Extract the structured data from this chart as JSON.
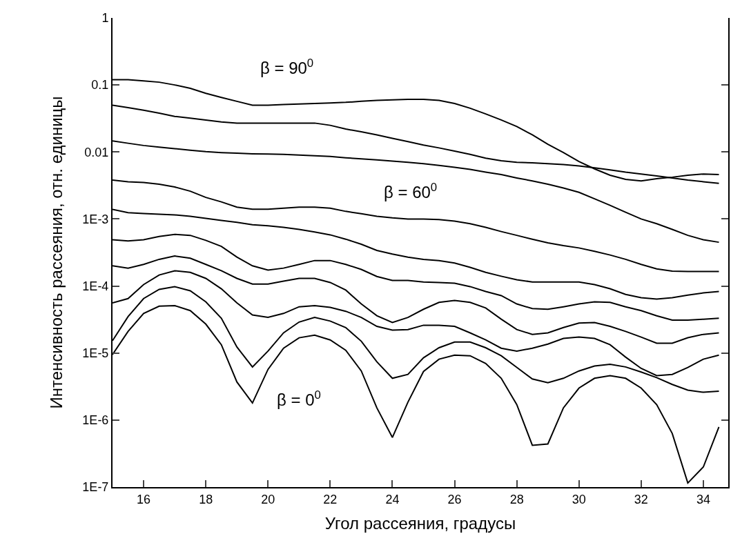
{
  "chart_data": {
    "type": "line",
    "xlabel": "Угол рассеяния, градусы",
    "ylabel": "Интенсивность рассеяния, отн. единицы",
    "x": [
      15,
      15.5,
      16,
      16.5,
      17,
      17.5,
      18,
      18.5,
      19,
      19.5,
      20,
      20.5,
      21,
      21.5,
      22,
      22.5,
      23,
      23.5,
      24,
      24.5,
      25,
      25.5,
      26,
      26.5,
      27,
      27.5,
      28,
      28.5,
      29,
      29.5,
      30,
      30.5,
      31,
      31.5,
      32,
      32.5,
      33,
      33.5,
      34,
      34.5
    ],
    "series": [
      {
        "color": "#000000",
        "values": [
          0.12,
          0.12,
          0.115,
          0.11,
          0.1,
          0.089,
          0.075,
          0.065,
          0.057,
          0.05,
          0.05,
          0.051,
          0.052,
          0.053,
          0.054,
          0.055,
          0.057,
          0.059,
          0.06,
          0.061,
          0.061,
          0.059,
          0.053,
          0.045,
          0.037,
          0.03,
          0.024,
          0.018,
          0.013,
          0.0098,
          0.0072,
          0.0056,
          0.0045,
          0.0039,
          0.0037,
          0.004,
          0.0042,
          0.0045,
          0.0047,
          0.0046
        ]
      },
      {
        "color": "#000000",
        "values": [
          0.05,
          0.046,
          0.042,
          0.038,
          0.034,
          0.032,
          0.03,
          0.028,
          0.027,
          0.027,
          0.027,
          0.027,
          0.027,
          0.027,
          0.025,
          0.022,
          0.02,
          0.018,
          0.016,
          0.0143,
          0.0127,
          0.0115,
          0.0103,
          0.0092,
          0.0081,
          0.0074,
          0.007,
          0.0069,
          0.0067,
          0.0065,
          0.0062,
          0.0058,
          0.0054,
          0.005,
          0.0047,
          0.0044,
          0.0041,
          0.0038,
          0.0036,
          0.0034
        ]
      },
      {
        "color": "#000000",
        "values": [
          0.0146,
          0.0135,
          0.0125,
          0.0118,
          0.0112,
          0.0106,
          0.0101,
          0.0098,
          0.0096,
          0.0094,
          0.0093,
          0.0092,
          0.009,
          0.0088,
          0.0086,
          0.0082,
          0.0079,
          0.0076,
          0.0073,
          0.007,
          0.0067,
          0.0063,
          0.0059,
          0.0055,
          0.005,
          0.0046,
          0.0041,
          0.0037,
          0.0033,
          0.0029,
          0.0025,
          0.002,
          0.0016,
          0.00126,
          0.001,
          0.00085,
          0.0007,
          0.00057,
          0.00049,
          0.00045
        ]
      },
      {
        "color": "#000000",
        "values": [
          0.0038,
          0.0036,
          0.0035,
          0.0033,
          0.003,
          0.0026,
          0.0021,
          0.0018,
          0.0015,
          0.0014,
          0.0014,
          0.00145,
          0.0015,
          0.0015,
          0.00145,
          0.0013,
          0.0012,
          0.0011,
          0.00104,
          0.001,
          0.001,
          0.00098,
          0.00093,
          0.00085,
          0.00075,
          0.00065,
          0.00057,
          0.0005,
          0.00044,
          0.0004,
          0.00037,
          0.00033,
          0.00029,
          0.00025,
          0.00021,
          0.00018,
          0.000167,
          0.000165,
          0.000165,
          0.000165
        ]
      },
      {
        "color": "#000000",
        "values": [
          0.00139,
          0.00124,
          0.00121,
          0.00118,
          0.00115,
          0.0011,
          0.00102,
          0.00095,
          0.00089,
          0.00082,
          0.00079,
          0.00075,
          0.0007,
          0.00064,
          0.00058,
          0.0005,
          0.00042,
          0.00034,
          0.0003,
          0.00027,
          0.00025,
          0.00024,
          0.00022,
          0.00019,
          0.00016,
          0.00014,
          0.000124,
          0.000115,
          0.000115,
          0.000115,
          0.000115,
          0.000105,
          9.1e-05,
          7.5e-05,
          6.7e-05,
          6.4e-05,
          6.7e-05,
          7.3e-05,
          7.9e-05,
          8.3e-05
        ]
      },
      {
        "color": "#000000",
        "values": [
          0.00049,
          0.00047,
          0.00049,
          0.00055,
          0.00059,
          0.00057,
          0.00048,
          0.00039,
          0.00027,
          0.0002,
          0.000173,
          0.000185,
          0.00021,
          0.00024,
          0.00024,
          0.00021,
          0.000177,
          0.000139,
          0.000121,
          0.000121,
          0.000115,
          0.000113,
          0.00011,
          9.8e-05,
          8.3e-05,
          7.2e-05,
          5.4e-05,
          4.6e-05,
          4.5e-05,
          4.9e-05,
          5.4e-05,
          5.8e-05,
          5.7e-05,
          4.9e-05,
          4.3e-05,
          3.6e-05,
          3.1e-05,
          3.1e-05,
          3.2e-05,
          3.3e-05
        ]
      },
      {
        "color": "#000000",
        "values": [
          0.0002,
          0.000185,
          0.00021,
          0.00025,
          0.00028,
          0.00026,
          0.00021,
          0.000169,
          0.00013,
          0.000107,
          0.000107,
          0.000118,
          0.00013,
          0.00013,
          0.000113,
          8.7e-05,
          5.4e-05,
          3.6e-05,
          2.85e-05,
          3.4e-05,
          4.5e-05,
          5.7e-05,
          6.1e-05,
          5.7e-05,
          4.7e-05,
          3.2e-05,
          2.24e-05,
          1.9e-05,
          2e-05,
          2.4e-05,
          2.8e-05,
          2.85e-05,
          2.5e-05,
          2.1e-05,
          1.73e-05,
          1.4e-05,
          1.4e-05,
          1.69e-05,
          1.9e-05,
          2e-05
        ]
      },
      {
        "color": "#000000",
        "values": [
          5.6e-05,
          6.5e-05,
          0.000105,
          0.000146,
          0.000169,
          0.00016,
          0.00013,
          9.1e-05,
          5.6e-05,
          3.7e-05,
          3.4e-05,
          3.9e-05,
          4.9e-05,
          5.1e-05,
          4.8e-05,
          4.2e-05,
          3.4e-05,
          2.5e-05,
          2.2e-05,
          2.24e-05,
          2.6e-05,
          2.6e-05,
          2.5e-05,
          2e-05,
          1.57e-05,
          1.18e-05,
          1.07e-05,
          1.18e-05,
          1.36e-05,
          1.65e-05,
          1.73e-05,
          1.65e-05,
          1.33e-05,
          8.7e-06,
          5.9e-06,
          4.6e-06,
          4.8e-06,
          6.1e-06,
          8.1e-06,
          9.3e-06
        ]
      },
      {
        "color": "#000000",
        "values": [
          1.53e-05,
          3.5e-05,
          6.5e-05,
          8.9e-05,
          9.8e-05,
          8.5e-05,
          5.8e-05,
          3.3e-05,
          1.23e-05,
          6.2e-06,
          1.07e-05,
          2e-05,
          2.9e-05,
          3.4e-05,
          3e-05,
          2.4e-05,
          1.5e-05,
          7.4e-06,
          4.2e-06,
          4.8e-06,
          8.5e-06,
          1.2e-05,
          1.46e-05,
          1.46e-05,
          1.2e-05,
          9.1e-06,
          6.1e-06,
          4.1e-06,
          3.6e-06,
          4.2e-06,
          5.4e-06,
          6.4e-06,
          6.8e-06,
          6.2e-06,
          5.2e-06,
          4.3e-06,
          3.4e-06,
          2.8e-06,
          2.6e-06,
          2.7e-06
        ]
      },
      {
        "color": "#000000",
        "values": [
          9.5e-06,
          2.1e-05,
          3.9e-05,
          5e-05,
          5.1e-05,
          4.3e-05,
          2.7e-05,
          1.33e-05,
          3.7e-06,
          1.8e-06,
          5.7e-06,
          1.18e-05,
          1.69e-05,
          1.85e-05,
          1.57e-05,
          1.1e-05,
          5.4e-06,
          1.52e-06,
          5.5e-07,
          1.85e-06,
          5.3e-06,
          8.1e-06,
          9.3e-06,
          9.1e-06,
          7e-06,
          4.2e-06,
          1.7e-06,
          4.2e-07,
          4.4e-07,
          1.52e-06,
          3e-06,
          4.2e-06,
          4.6e-06,
          4.2e-06,
          3e-06,
          1.7e-06,
          6.3e-07,
          1.15e-07,
          2e-07,
          7.9e-07
        ]
      }
    ],
    "annotations": [
      "β = 90$^{0}$",
      "β = 60$^{0}$",
      "β = 0$^{0}$"
    ],
    "log": "y",
    "xlim": [
      15,
      34.8
    ],
    "ylim": [
      1e-07,
      1
    ],
    "xticks": [
      16,
      18,
      20,
      22,
      24,
      26,
      28,
      30,
      32,
      34
    ],
    "yticks": [
      1,
      0.1,
      0.01,
      {
        "value": 0.001,
        "label": "1E-3"
      },
      {
        "value": 0.0001,
        "label": "1E-4"
      },
      {
        "value": 1e-05,
        "label": "1E-5"
      },
      {
        "value": 1e-06,
        "label": "1E-6"
      },
      {
        "value": 1e-07,
        "label": "1E-7"
      }
    ],
    "grid": false,
    "marker": "none",
    "line_style": "solid"
  }
}
